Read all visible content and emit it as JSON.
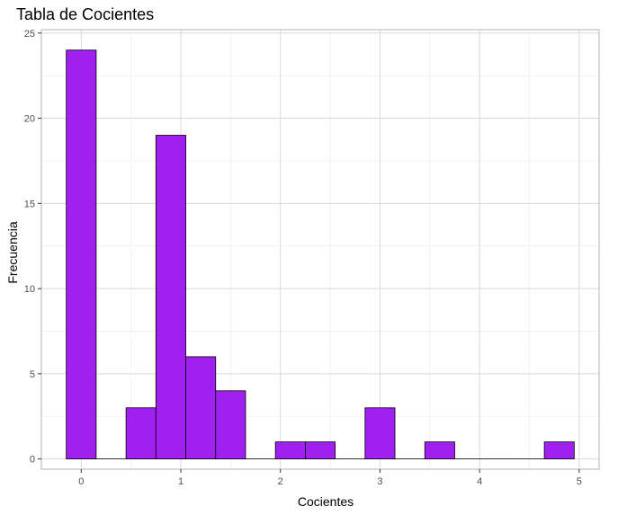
{
  "chart_data": {
    "type": "bar",
    "subtype": "histogram",
    "title": "Tabla de Cocientes",
    "xlabel": "Cocientes",
    "ylabel": "Frecuencia",
    "x_ticks": [
      0,
      1,
      2,
      3,
      4,
      5
    ],
    "y_ticks": [
      0,
      5,
      10,
      15,
      20,
      25
    ],
    "xlim": [
      -0.4,
      5.2
    ],
    "ylim": [
      -0.6,
      25.2
    ],
    "bin_width": 0.3,
    "bins": [
      {
        "x0": -0.15,
        "x1": 0.15,
        "count": 24
      },
      {
        "x0": 0.15,
        "x1": 0.45,
        "count": 0
      },
      {
        "x0": 0.45,
        "x1": 0.75,
        "count": 3
      },
      {
        "x0": 0.75,
        "x1": 1.05,
        "count": 19
      },
      {
        "x0": 1.05,
        "x1": 1.35,
        "count": 6
      },
      {
        "x0": 1.35,
        "x1": 1.65,
        "count": 4
      },
      {
        "x0": 1.65,
        "x1": 1.95,
        "count": 0
      },
      {
        "x0": 1.95,
        "x1": 2.25,
        "count": 1
      },
      {
        "x0": 2.25,
        "x1": 2.55,
        "count": 1
      },
      {
        "x0": 2.55,
        "x1": 2.85,
        "count": 0
      },
      {
        "x0": 2.85,
        "x1": 3.15,
        "count": 3
      },
      {
        "x0": 3.15,
        "x1": 3.45,
        "count": 0
      },
      {
        "x0": 3.45,
        "x1": 3.75,
        "count": 1
      },
      {
        "x0": 3.75,
        "x1": 4.05,
        "count": 0
      },
      {
        "x0": 4.05,
        "x1": 4.35,
        "count": 0
      },
      {
        "x0": 4.35,
        "x1": 4.65,
        "count": 0
      },
      {
        "x0": 4.65,
        "x1": 4.95,
        "count": 1
      }
    ],
    "grid": true,
    "colors": {
      "bar_fill": "#A020F0",
      "bar_stroke": "#000000",
      "grid": "#d9d9d9",
      "panel_border": "#b3b3b3"
    }
  }
}
